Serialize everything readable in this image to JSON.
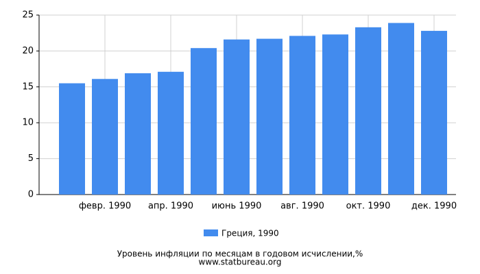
{
  "chart_data": {
    "type": "bar",
    "title": "Уровень инфляции по месяцам в годовом исчислении,%",
    "source": "www.statbureau.org",
    "categories": [
      null,
      "февр. 1990",
      null,
      "апр. 1990",
      null,
      "июнь 1990",
      null,
      "авг. 1990",
      null,
      "окт. 1990",
      null,
      "дек. 1990"
    ],
    "series": [
      {
        "name": "Греция, 1990",
        "color": "#428bee",
        "values": [
          15.5,
          16.1,
          16.9,
          17.1,
          20.4,
          21.6,
          21.7,
          22.1,
          22.3,
          23.3,
          23.9,
          22.8
        ]
      }
    ],
    "ylim": [
      0,
      25
    ],
    "yticks": [
      0,
      5,
      10,
      15,
      20,
      25
    ],
    "grid": true
  }
}
